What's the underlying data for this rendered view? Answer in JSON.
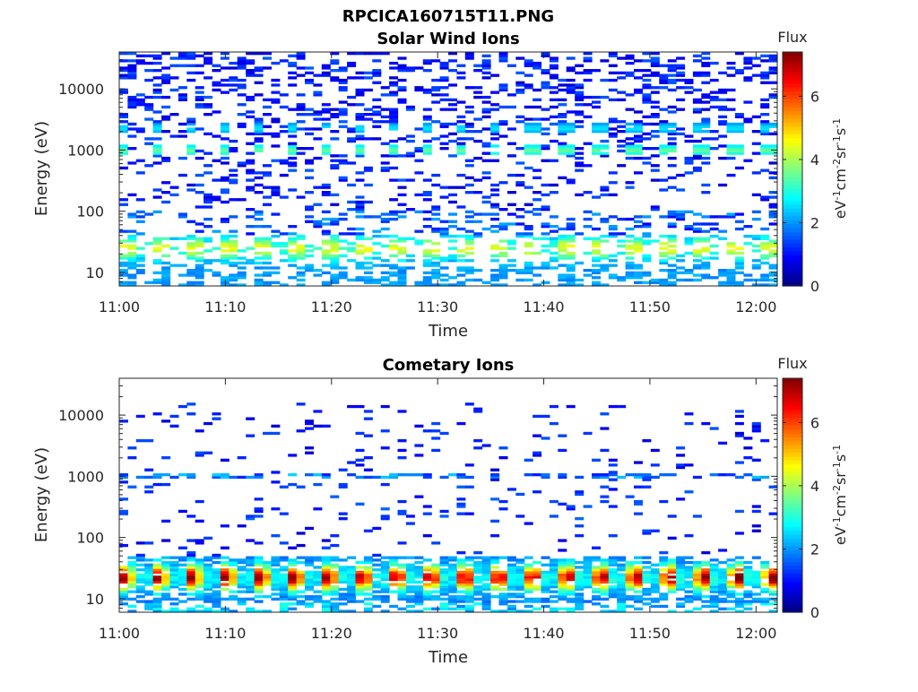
{
  "figure_title": "RPCICA160715T11.PNG",
  "colors": {
    "colormap": "jet",
    "jet_stops": [
      "#00007f",
      "#0000ff",
      "#007fff",
      "#00ffff",
      "#7fff7f",
      "#ffff00",
      "#ff7f00",
      "#ff0000",
      "#7f0000"
    ],
    "axis": "#262626",
    "background": "#ffffff"
  },
  "chart_data": [
    {
      "type": "heatmap",
      "title": "Solar Wind Ions",
      "xlabel": "Time",
      "ylabel": "Energy (eV)",
      "y_scale": "log",
      "xlim": [
        "11:00",
        "12:02"
      ],
      "ylim": [
        6,
        40000
      ],
      "x_ticks": [
        "11:00",
        "11:10",
        "11:20",
        "11:30",
        "11:40",
        "11:50",
        "12:00"
      ],
      "y_ticks": [
        "10",
        "100",
        "1000",
        "10000"
      ],
      "colorbar": {
        "title": "Flux",
        "label": "eV-1cm-2sr-1s-1",
        "ticks": [
          "0",
          "2",
          "4",
          "6"
        ],
        "range": [
          0,
          7.4
        ]
      },
      "features": [
        {
          "description": "sparse background counts",
          "energy_range": [
            100,
            40000
          ],
          "flux": [
            0.5,
            1.5
          ]
        },
        {
          "description": "periodic peak near 1000 eV",
          "energy_center": 1000,
          "period_min": 3.2,
          "flux_peak": 3.5
        },
        {
          "description": "periodic peak near 2300 eV",
          "energy_center": 2300,
          "period_min": 3.2,
          "flux_peak": 2.5
        },
        {
          "description": "periodic low-energy band",
          "energy_range": [
            6,
            40
          ],
          "period_min": 3.2,
          "flux_peak": 4.0
        }
      ]
    },
    {
      "type": "heatmap",
      "title": "Cometary Ions",
      "xlabel": "Time",
      "ylabel": "Energy (eV)",
      "y_scale": "log",
      "xlim": [
        "11:00",
        "12:02"
      ],
      "ylim": [
        6,
        40000
      ],
      "x_ticks": [
        "11:00",
        "11:10",
        "11:20",
        "11:30",
        "11:40",
        "11:50",
        "12:00"
      ],
      "y_ticks": [
        "10",
        "100",
        "1000",
        "10000"
      ],
      "colorbar": {
        "title": "Flux",
        "label": "eV-1cm-2sr-1s-1",
        "ticks": [
          "0",
          "2",
          "4",
          "6"
        ],
        "range": [
          0,
          7.4
        ]
      },
      "features": [
        {
          "description": "sparse counts",
          "energy_range": [
            50,
            15000
          ],
          "flux": [
            0.5,
            1.5
          ]
        },
        {
          "description": "line near 1000 eV",
          "energy_center": 1000,
          "flux": [
            1.0,
            2.5
          ]
        },
        {
          "description": "intense periodic low-energy band",
          "energy_range": [
            10,
            45
          ],
          "energy_peak": 22,
          "period_min": 3.2,
          "flux_peak": 7.0
        }
      ]
    }
  ]
}
